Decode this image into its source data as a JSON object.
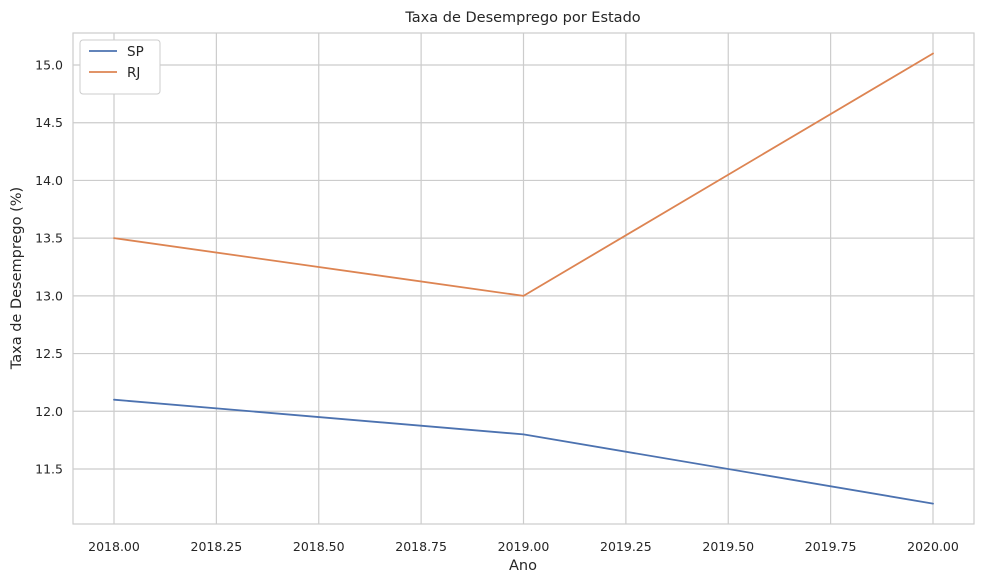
{
  "chart_data": {
    "type": "line",
    "title": "Taxa de Desemprego por Estado",
    "xlabel": "Ano",
    "ylabel": "Taxa de Desemprego (%)",
    "xlim": [
      1995.9,
      2020.2
    ],
    "ylim": [
      11.0,
      15.3
    ],
    "x_ticks": [
      2018.0,
      2018.25,
      2018.5,
      2018.75,
      2019.0,
      2019.25,
      2019.5,
      2019.75,
      2020.0
    ],
    "x_tick_labels": [
      "2018.00",
      "2018.25",
      "2018.50",
      "2018.75",
      "2019.00",
      "2019.25",
      "2019.50",
      "2019.75",
      "2020.00"
    ],
    "y_ticks": [
      11.5,
      12.0,
      12.5,
      13.0,
      13.5,
      14.0,
      14.5,
      15.0
    ],
    "y_tick_labels": [
      "11.5",
      "12.0",
      "12.5",
      "13.0",
      "13.5",
      "14.0",
      "14.5",
      "15.0"
    ],
    "grid": true,
    "legend_position": "top-left",
    "series": [
      {
        "name": "SP",
        "color": "#4c72b0",
        "x": [
          2018,
          2019,
          2020
        ],
        "y": [
          12.1,
          11.8,
          11.2
        ]
      },
      {
        "name": "RJ",
        "color": "#dd8452",
        "x": [
          2018,
          2019,
          2020
        ],
        "y": [
          13.5,
          13.0,
          15.1
        ]
      }
    ]
  }
}
